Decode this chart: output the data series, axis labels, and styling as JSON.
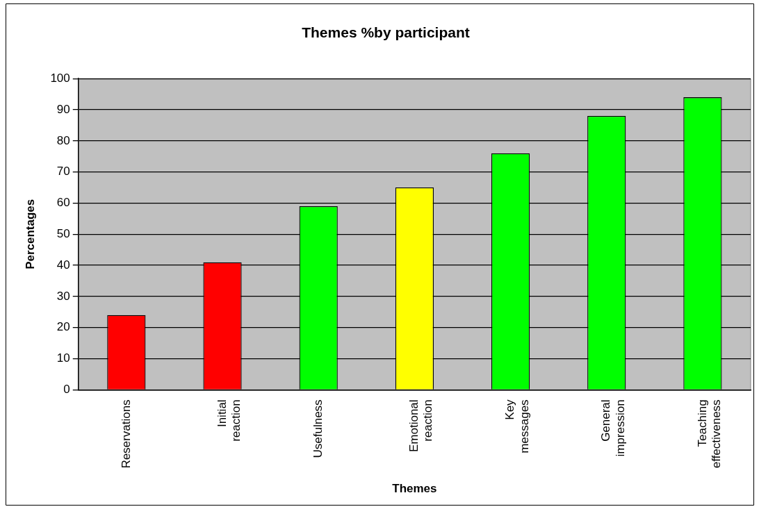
{
  "chart_data": {
    "type": "bar",
    "title": "Themes %by participant",
    "xlabel": "Themes",
    "ylabel": "Percentages",
    "categories": [
      "Reservations",
      "Initial reaction",
      "Usefulness",
      "Emotional reaction",
      "Key messages",
      "General impression",
      "Teaching effectiveness"
    ],
    "values": [
      24,
      41,
      59,
      65,
      76,
      88,
      94
    ],
    "colors": [
      "#ff0000",
      "#ff0000",
      "#00ff00",
      "#ffff00",
      "#00ff00",
      "#00ff00",
      "#00ff00"
    ],
    "ylim": [
      0,
      100
    ],
    "yticks": [
      0,
      10,
      20,
      30,
      40,
      50,
      60,
      70,
      80,
      90,
      100
    ],
    "grid": "y",
    "legend": false
  }
}
